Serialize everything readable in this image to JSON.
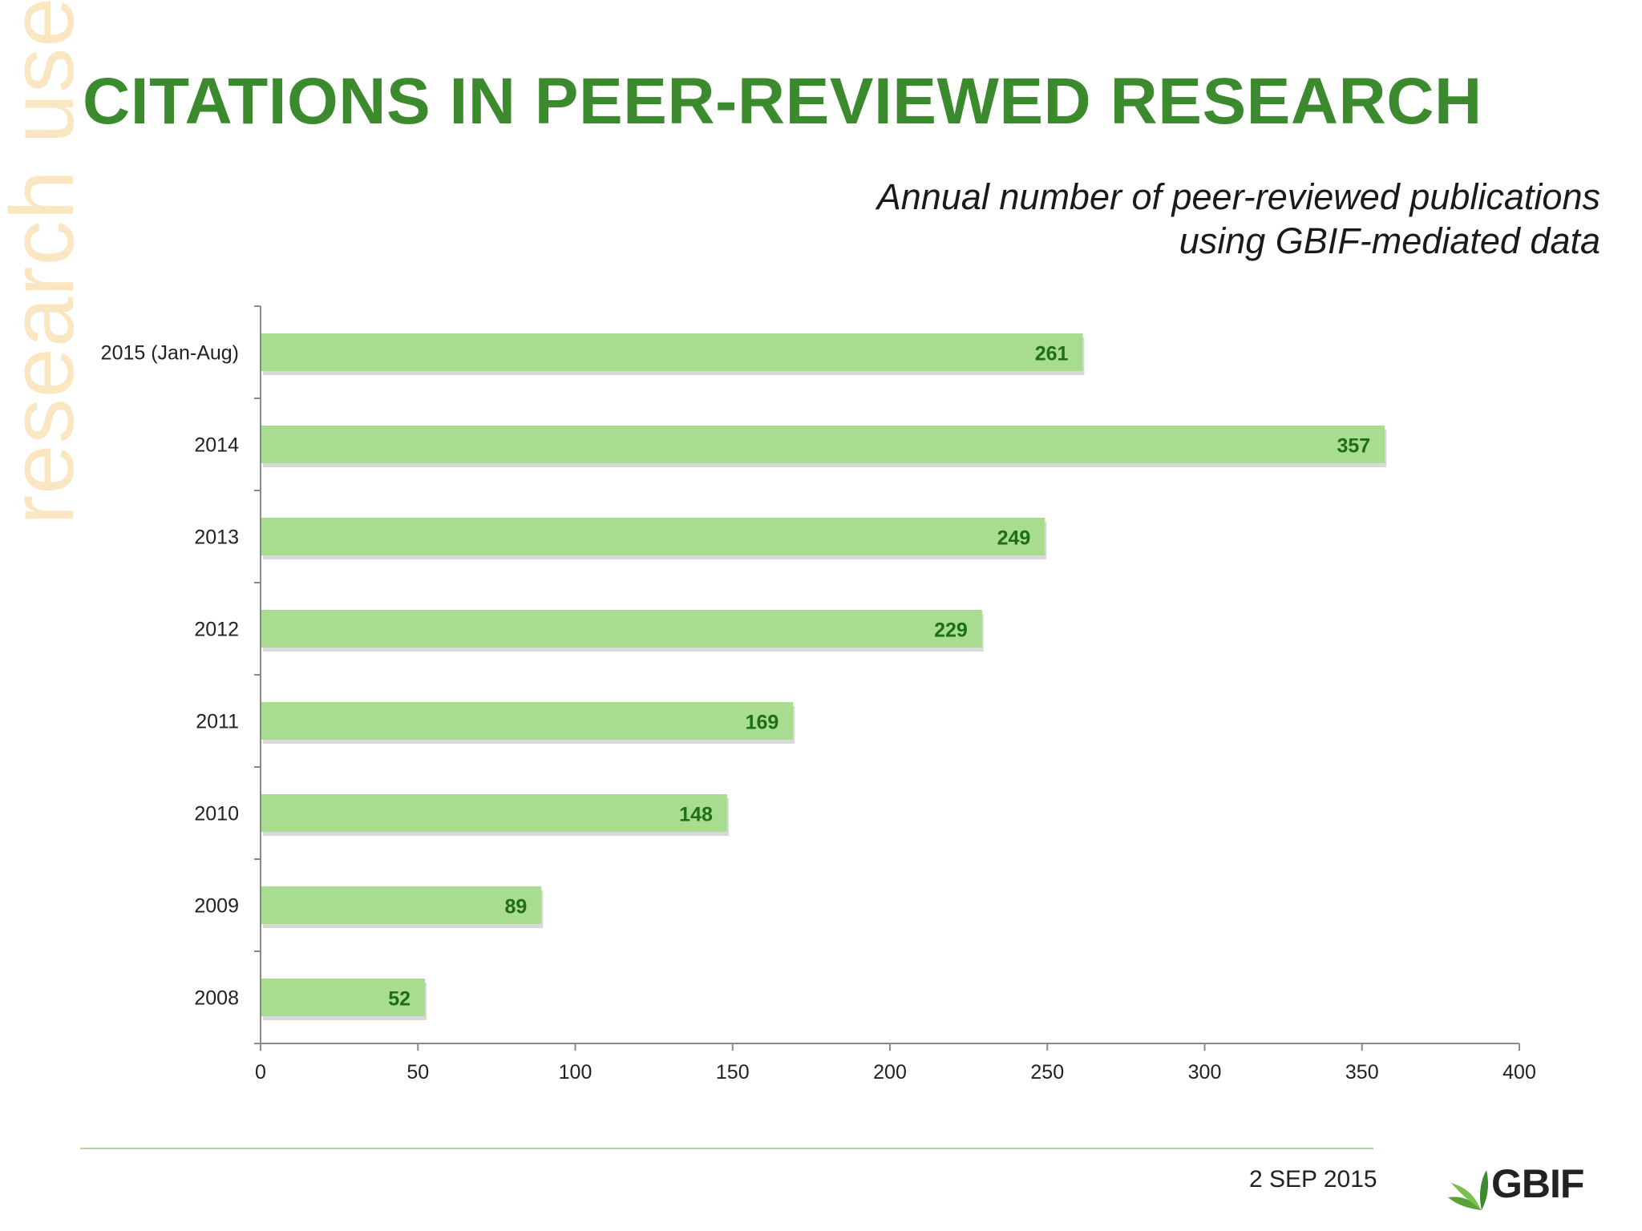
{
  "watermark": "research use",
  "title": "CITATIONS IN PEER-REVIEWED RESEARCH",
  "subtitle": {
    "line1": "Annual number of peer-reviewed publications",
    "line2": "using GBIF-mediated data"
  },
  "footer": {
    "date": "2 SEP 2015",
    "logo_text": "GBIF"
  },
  "colors": {
    "title": "#3c8a2e",
    "bar": "#a8dc91",
    "bar_shadow": "#b9b9b9",
    "value_label": "#1e6e14",
    "watermark": "#fbe6c2"
  },
  "chart_data": {
    "type": "bar",
    "orientation": "horizontal",
    "categories": [
      "2015 (Jan-Aug)",
      "2014",
      "2013",
      "2012",
      "2011",
      "2010",
      "2009",
      "2008"
    ],
    "values": [
      261,
      357,
      249,
      229,
      169,
      148,
      89,
      52
    ],
    "xlim": [
      0,
      400
    ],
    "xticks": [
      0,
      50,
      100,
      150,
      200,
      250,
      300,
      350,
      400
    ],
    "data_labels": true,
    "grid": false,
    "legend": "none"
  }
}
